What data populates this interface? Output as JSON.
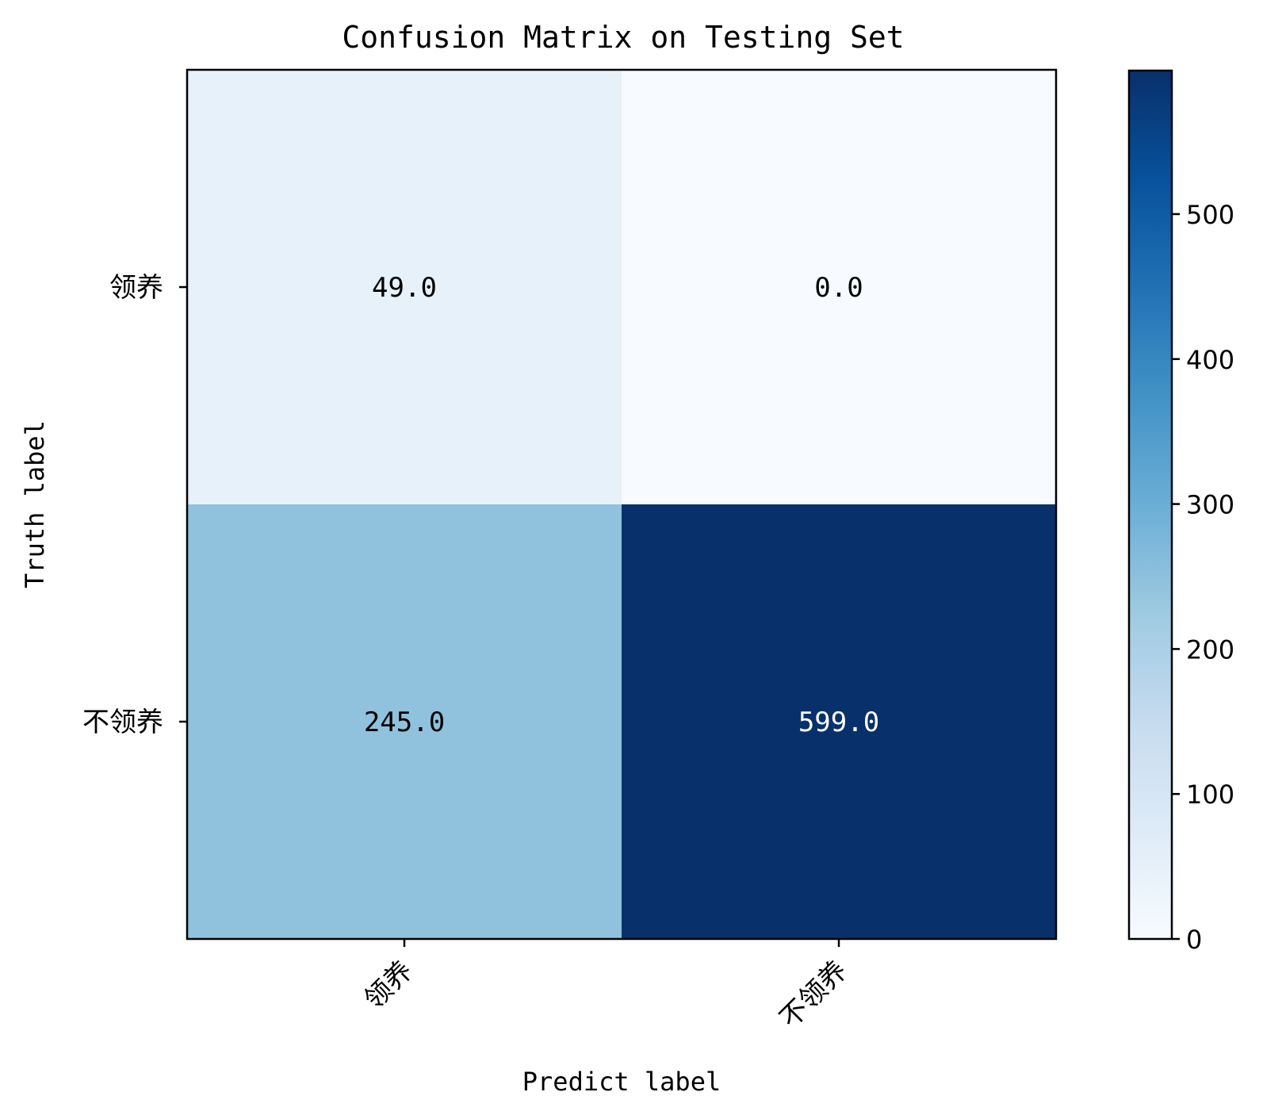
{
  "chart_data": {
    "type": "heatmap",
    "title": "Confusion Matrix on Testing Set",
    "xlabel": "Predict label",
    "ylabel": "Truth label",
    "x_categories": [
      "领养",
      "不领养"
    ],
    "y_categories": [
      "领养",
      "不领养"
    ],
    "values": [
      [
        49.0,
        0.0
      ],
      [
        245.0,
        599.0
      ]
    ],
    "value_labels": [
      [
        "49.0",
        "0.0"
      ],
      [
        "245.0",
        "599.0"
      ]
    ],
    "colormap": "Blues",
    "colorbar": {
      "range": [
        0,
        599
      ],
      "ticks": [
        0,
        100,
        200,
        300,
        400,
        500
      ]
    },
    "x_tick_rotation_deg": 45,
    "grid": false
  }
}
